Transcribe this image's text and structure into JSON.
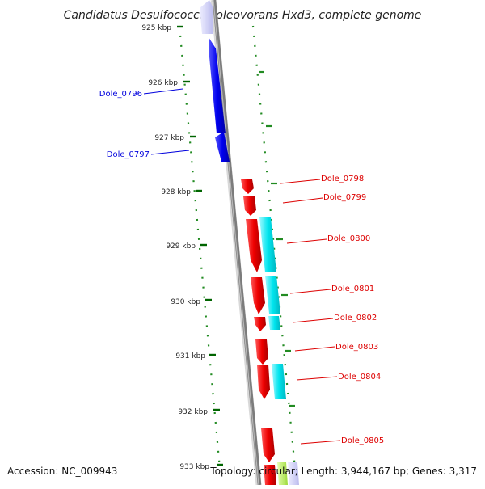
{
  "title": "Candidatus Desulfococcus oleovorans Hxd3, complete genome",
  "footer": {
    "accession": "Accession: NC_009943",
    "topology": "Topology: circular; Length: 3,944,167 bp; Genes: 3,317"
  },
  "ruler_ticks": [
    {
      "label": "925 kbp"
    },
    {
      "label": "926 kbp"
    },
    {
      "label": "927 kbp"
    },
    {
      "label": "928 kbp"
    },
    {
      "label": "929 kbp"
    },
    {
      "label": "930 kbp"
    },
    {
      "label": "931 kbp"
    },
    {
      "label": "932 kbp"
    },
    {
      "label": "933 kbp"
    }
  ],
  "genes": [
    {
      "id": "Dole_0796",
      "strand": "reverse",
      "color": "#0000dd"
    },
    {
      "id": "Dole_0797",
      "strand": "reverse",
      "color": "#0000dd"
    },
    {
      "id": "Dole_0798",
      "strand": "forward",
      "color": "#dd0000"
    },
    {
      "id": "Dole_0799",
      "strand": "forward",
      "color": "#dd0000"
    },
    {
      "id": "Dole_0800",
      "strand": "forward",
      "color": "#dd0000"
    },
    {
      "id": "Dole_0801",
      "strand": "forward",
      "color": "#dd0000"
    },
    {
      "id": "Dole_0802",
      "strand": "forward",
      "color": "#dd0000"
    },
    {
      "id": "Dole_0803",
      "strand": "forward",
      "color": "#dd0000"
    },
    {
      "id": "Dole_0804",
      "strand": "forward",
      "color": "#dd0000"
    },
    {
      "id": "Dole_0805",
      "strand": "forward",
      "color": "#dd0000"
    }
  ],
  "colors": {
    "reverse_strand": "#0000dd",
    "forward_strand": "#dd0000",
    "cds_feature": "#00e5ee",
    "gc_dots": "#228b22",
    "backbone": "#808080"
  }
}
